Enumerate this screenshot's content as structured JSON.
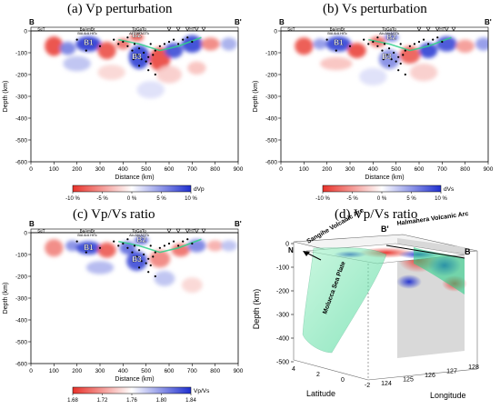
{
  "figure": {
    "panels": [
      {
        "id": "a",
        "title": "(a) Vp perturbation",
        "colorbar_label": "dVp",
        "colorbar_ticks": [
          "-10 %",
          "-5 %",
          "0 %",
          "5 %",
          "10 %"
        ]
      },
      {
        "id": "b",
        "title": "(b) Vs perturbation",
        "colorbar_label": "dVs",
        "colorbar_ticks": [
          "-10 %",
          "-5 %",
          "0 %",
          "5 %",
          "10 %"
        ]
      },
      {
        "id": "c",
        "title": "(c) Vp/Vs ratio",
        "colorbar_label": "Vp/Vs",
        "colorbar_ticks": [
          "1.68",
          "1.72",
          "1.76",
          "1.80",
          "1.84"
        ]
      },
      {
        "id": "d",
        "title": "(d) Vp/Vs ratio"
      }
    ],
    "section_ends": {
      "start": "B",
      "end": "B'"
    },
    "section_labels": {
      "set": "SeT",
      "bahri": "BaAmBr",
      "bahri_sub": "BiA ArA HtTc",
      "toga": "ToGaTo",
      "toga_sub": "Alo AbrAGTk",
      "ht": "HT"
    },
    "anomalies": {
      "b1": "B1",
      "b2": "B2",
      "b3": "B3"
    },
    "panel_d": {
      "labels": {
        "halmahera": "Halmahera Volcanic Arc",
        "sangihe": "Sangihe Volcanic Arc",
        "molucca": "Molucca Sea Plate",
        "north": "N",
        "b_prime": "B'",
        "b": "B"
      },
      "zlabel": "Depth (km)",
      "xlabel": "Latitude",
      "ylabel": "Longitude",
      "z_ticks": [
        "0",
        "-100",
        "-200",
        "-300",
        "-400",
        "-500"
      ],
      "lat_ticks": [
        "4",
        "2",
        "0",
        "-2"
      ],
      "lon_ticks": [
        "124",
        "125",
        "126",
        "127",
        "128"
      ]
    },
    "colors": {
      "red": "#e8322a",
      "blue": "#1f2fd0",
      "slab": "#2fd08a"
    }
  },
  "chart_data": [
    {
      "type": "heatmap",
      "panel": "a",
      "title": "(a) Vp perturbation",
      "xlabel": "Distance (km)",
      "ylabel": "Depth (km)",
      "xlim": [
        0,
        900
      ],
      "ylim": [
        -600,
        0
      ],
      "x_ticks": [
        0,
        100,
        200,
        300,
        400,
        500,
        600,
        700,
        800,
        900
      ],
      "y_ticks": [
        0,
        -100,
        -200,
        -300,
        -400,
        -500,
        -600
      ],
      "colorbar": {
        "label": "dVp",
        "range": [
          -10,
          10
        ],
        "unit": "%"
      },
      "anomalies": [
        {
          "label": "B1",
          "x": 250,
          "y": -55
        },
        {
          "label": "B2",
          "x": 460,
          "y": -20
        },
        {
          "label": "B3",
          "x": 460,
          "y": -120
        }
      ]
    },
    {
      "type": "heatmap",
      "panel": "b",
      "title": "(b) Vs perturbation",
      "xlabel": "Distance (km)",
      "ylabel": "Depth (km)",
      "xlim": [
        0,
        900
      ],
      "ylim": [
        -600,
        0
      ],
      "x_ticks": [
        0,
        100,
        200,
        300,
        400,
        500,
        600,
        700,
        800,
        900
      ],
      "y_ticks": [
        0,
        -100,
        -200,
        -300,
        -400,
        -500,
        -600
      ],
      "colorbar": {
        "label": "dVs",
        "range": [
          -10,
          10
        ],
        "unit": "%"
      },
      "anomalies": [
        {
          "label": "B1",
          "x": 250,
          "y": -55
        },
        {
          "label": "B2",
          "x": 480,
          "y": -30
        },
        {
          "label": "B3",
          "x": 460,
          "y": -120
        }
      ]
    },
    {
      "type": "heatmap",
      "panel": "c",
      "title": "(c) Vp/Vs ratio",
      "xlabel": "Distance (km)",
      "ylabel": "Depth (km)",
      "xlim": [
        0,
        900
      ],
      "ylim": [
        -600,
        0
      ],
      "x_ticks": [
        0,
        100,
        200,
        300,
        400,
        500,
        600,
        700,
        800,
        900
      ],
      "y_ticks": [
        0,
        -100,
        -200,
        -300,
        -400,
        -500,
        -600
      ],
      "colorbar": {
        "label": "Vp/Vs",
        "range": [
          1.68,
          1.84
        ]
      },
      "anomalies": [
        {
          "label": "B1",
          "x": 250,
          "y": -70
        },
        {
          "label": "B2",
          "x": 480,
          "y": -35
        },
        {
          "label": "B3",
          "x": 460,
          "y": -125
        }
      ]
    }
  ]
}
